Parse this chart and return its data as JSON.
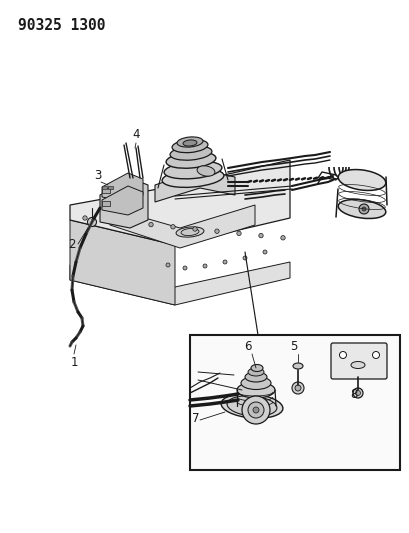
{
  "title_text": "90325 1300",
  "bg_color": "#ffffff",
  "line_color": "#1a1a1a",
  "gray_light": "#d8d8d8",
  "gray_mid": "#b8b8b8",
  "gray_dark": "#888888",
  "title_fontsize": 10.5,
  "fig_width": 4.09,
  "fig_height": 5.33,
  "dpi": 100,
  "label_fontsize": 8.5
}
